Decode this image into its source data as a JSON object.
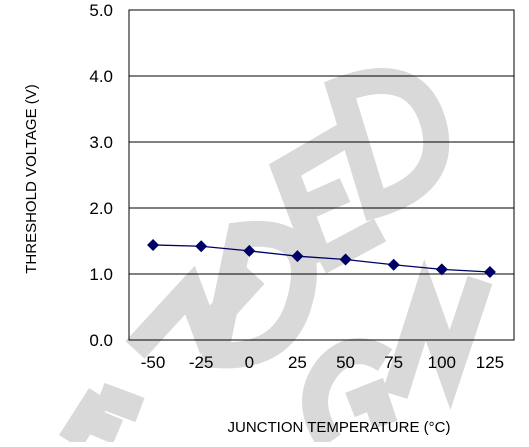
{
  "chart_data": {
    "type": "line",
    "title": "",
    "xlabel": "JUNCTION TEMPERATURE (°C)",
    "ylabel": "THRESHOLD VOLTAGE (V)",
    "x": [
      -50,
      -25,
      0,
      25,
      50,
      75,
      100,
      125
    ],
    "x_tick_labels": [
      "-50",
      "-25",
      "0",
      "25",
      "50",
      "75",
      "100",
      "125"
    ],
    "y_tick_labels": [
      "0.0",
      "1.0",
      "2.0",
      "3.0",
      "4.0",
      "5.0"
    ],
    "ylim": [
      0,
      5
    ],
    "grid": "horizontal",
    "legend": "none",
    "series": [
      {
        "values": [
          1.44,
          1.42,
          1.35,
          1.27,
          1.22,
          1.14,
          1.07,
          1.03
        ],
        "color": "#000066",
        "marker": "diamond"
      }
    ]
  },
  "watermark": {
    "text": "ENDED DESIGN",
    "color": "#d9d9d9"
  }
}
